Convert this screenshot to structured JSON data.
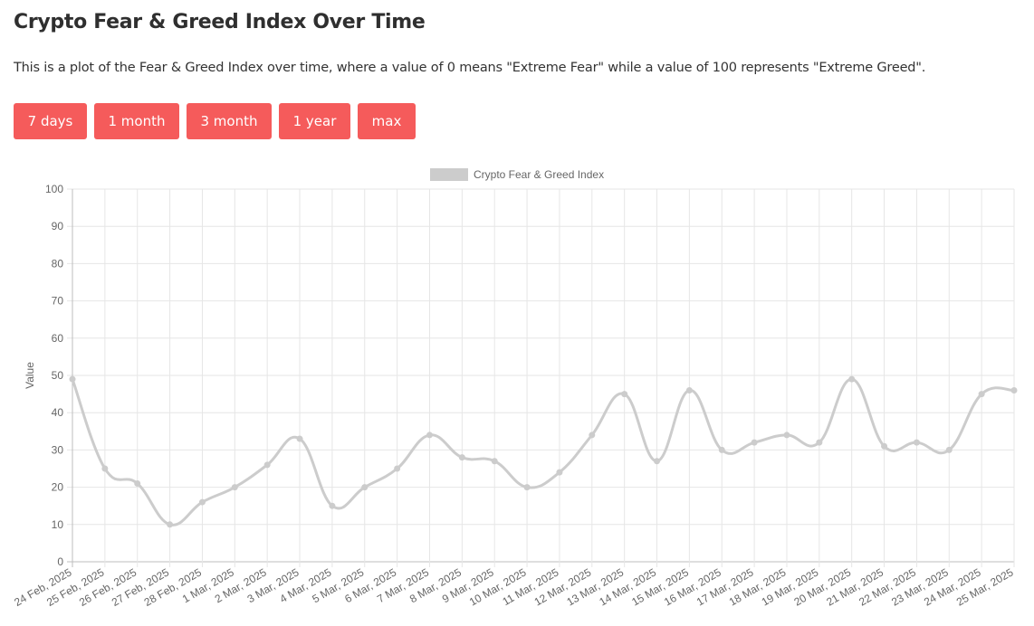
{
  "header": {
    "title": "Crypto Fear & Greed Index Over Time",
    "description": "This is a plot of the Fear & Greed Index over time, where a value of 0 means \"Extreme Fear\" while a value of 100 represents \"Extreme Greed\"."
  },
  "range_buttons": [
    {
      "label": "7 days"
    },
    {
      "label": "1 month"
    },
    {
      "label": "3 month"
    },
    {
      "label": "1 year"
    },
    {
      "label": "max"
    }
  ],
  "colors": {
    "button_bg": "#f55b5b",
    "button_text": "#ffffff",
    "series_line": "#cccccc",
    "grid": "#e6e6e6",
    "axis_text": "#666666"
  },
  "chart_data": {
    "type": "line",
    "legend_position": "top-center",
    "grid": true,
    "ylabel": "Value",
    "xlabel": "",
    "ylim": [
      0,
      100
    ],
    "yticks": [
      0,
      10,
      20,
      30,
      40,
      50,
      60,
      70,
      80,
      90,
      100
    ],
    "categories": [
      "24 Feb, 2025",
      "25 Feb, 2025",
      "26 Feb, 2025",
      "27 Feb, 2025",
      "28 Feb, 2025",
      "1 Mar, 2025",
      "2 Mar, 2025",
      "3 Mar, 2025",
      "4 Mar, 2025",
      "5 Mar, 2025",
      "6 Mar, 2025",
      "7 Mar, 2025",
      "8 Mar, 2025",
      "9 Mar, 2025",
      "10 Mar, 2025",
      "11 Mar, 2025",
      "12 Mar, 2025",
      "13 Mar, 2025",
      "14 Mar, 2025",
      "15 Mar, 2025",
      "16 Mar, 2025",
      "17 Mar, 2025",
      "18 Mar, 2025",
      "19 Mar, 2025",
      "20 Mar, 2025",
      "21 Mar, 2025",
      "22 Mar, 2025",
      "23 Mar, 2025",
      "24 Mar, 2025",
      "25 Mar, 2025"
    ],
    "series": [
      {
        "name": "Crypto Fear & Greed Index",
        "color": "#cccccc",
        "values": [
          49,
          25,
          21,
          10,
          16,
          20,
          26,
          33,
          15,
          20,
          25,
          34,
          28,
          27,
          20,
          24,
          34,
          45,
          27,
          46,
          30,
          32,
          34,
          32,
          49,
          31,
          32,
          30,
          45,
          46
        ]
      }
    ]
  }
}
